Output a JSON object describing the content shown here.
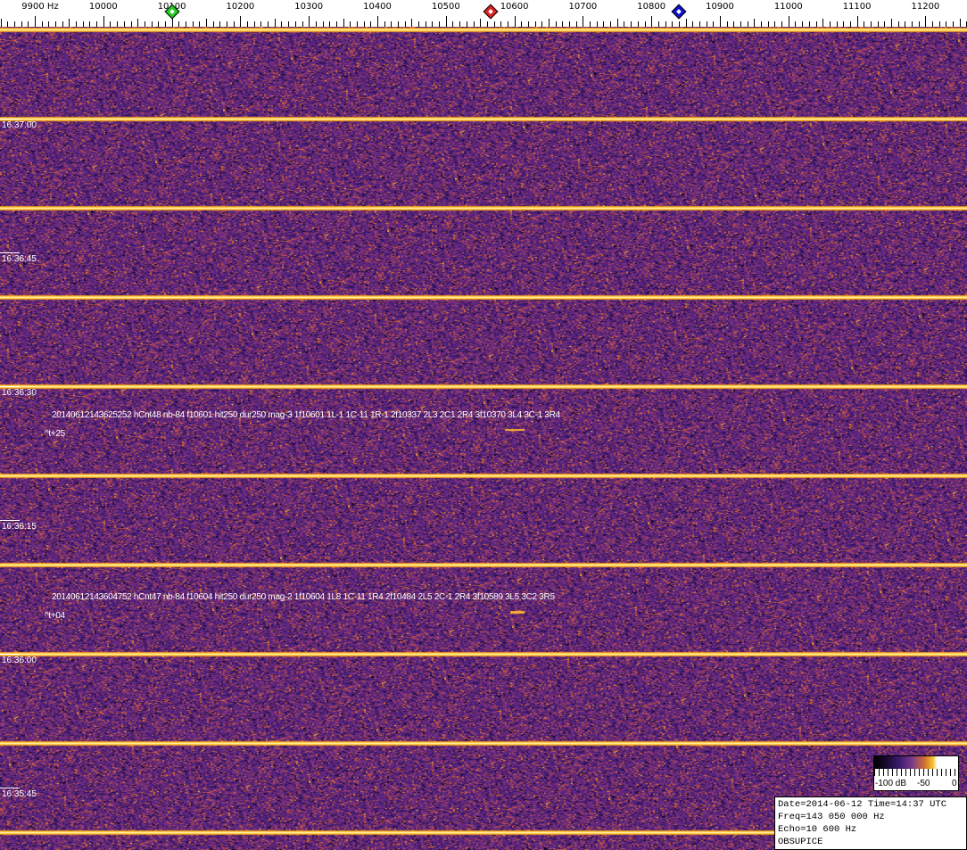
{
  "frequency_axis": {
    "unit": "Hz",
    "labels": [
      "9900 Hz",
      "10000",
      "10100",
      "10200",
      "10300",
      "10400",
      "10500",
      "10600",
      "10700",
      "10800",
      "10900",
      "11000",
      "11100",
      "11200"
    ],
    "values": [
      9900,
      10000,
      10100,
      10200,
      10300,
      10400,
      10500,
      10600,
      10700,
      10800,
      10900,
      11000,
      11100,
      11200
    ]
  },
  "markers": [
    {
      "name": "green-marker",
      "freq": 10100,
      "color": "#22cc22"
    },
    {
      "name": "red-marker",
      "freq": 10565,
      "color": "#dd2222"
    },
    {
      "name": "blue-marker",
      "freq": 10840,
      "color": "#1111cc"
    }
  ],
  "time_labels": [
    "16:37:00",
    "16:36:45",
    "16:36:30",
    "16:36:15",
    "16:36:00",
    "16:35:45"
  ],
  "annotations": [
    {
      "text": "20140612143625252 hCnt48 nb-84 f10601 hit250 dur250 mag-3 1f10601 1L-1 1C-11 1R-1 2f10337 2L3 2C1 2R4 3f10370 3L4 3C-1 3R4",
      "offset": "^t+25"
    },
    {
      "text": "20140612143604752 hCnt47 nb-84 f10604 hit250 dur250 mag-2 1f10604 1L8 1C-11 1R4 2f10484 2L5 2C-1 2R4 3f10589 3L5 3C2 3R5",
      "offset": "^t+04"
    }
  ],
  "colorbar": {
    "labels": [
      "-100 dB",
      "-50",
      "0"
    ]
  },
  "info": {
    "line1": "Date=2014-06-12 Time=14:37 UTC",
    "line2": "Freq=143 050 000 Hz",
    "line3": "Echo=10 600 Hz",
    "line4": "OBSUPICE"
  },
  "colors": {
    "background": "#4a2378",
    "line": "#ffd040"
  }
}
